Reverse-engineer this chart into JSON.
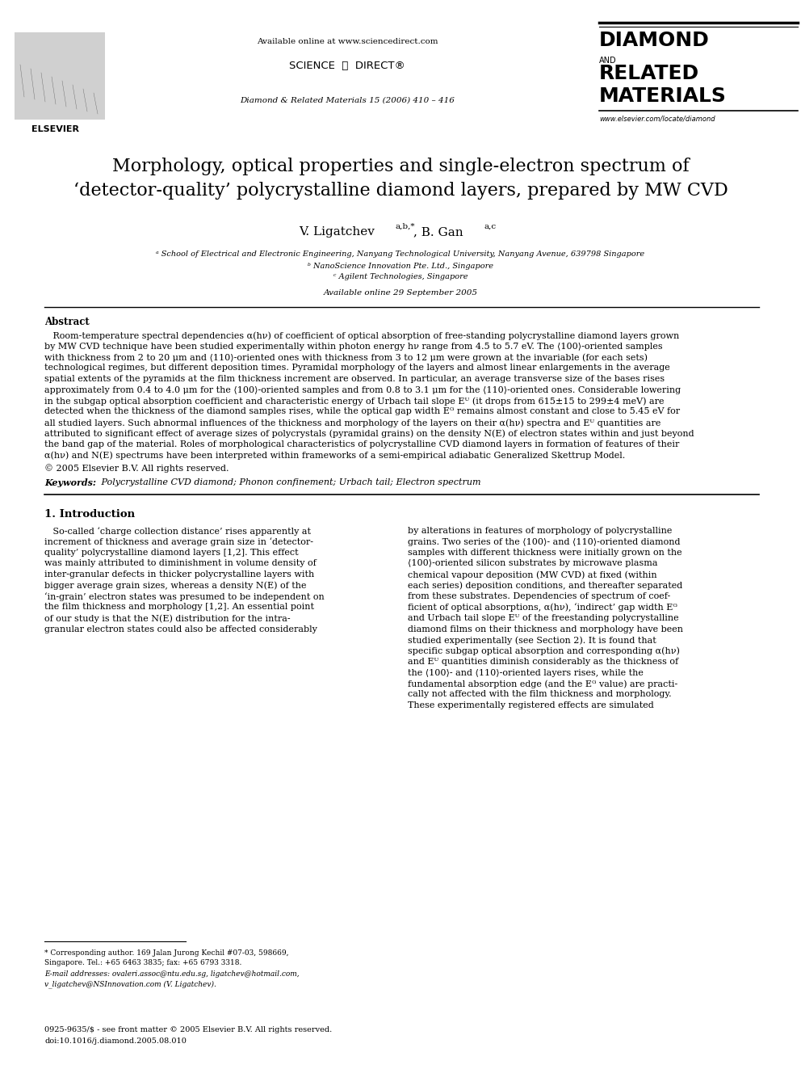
{
  "bg_color": "#ffffff",
  "page_width": 9.92,
  "page_height": 13.23,
  "header_available_online": "Available online at www.sciencedirect.com",
  "header_journal": "Diamond & Related Materials 15 (2006) 410 – 416",
  "journal_name_line1": "DIAMOND",
  "journal_name_and": "AND",
  "journal_name_line2": "RELATED",
  "journal_name_line3": "MATERIALS",
  "journal_website": "www.elsevier.com/locate/diamond",
  "title_line1": "Morphology, optical properties and single-electron spectrum of",
  "title_line2": "‘detector-quality’ polycrystalline diamond layers, prepared by MW CVD",
  "author_name1": "V. Ligatchev ",
  "author_super1": "a,b,*",
  "author_sep": ", B. Gan ",
  "author_super2": "a,c",
  "affil1": "ᵃ School of Electrical and Electronic Engineering, Nanyang Technological University, Nanyang Avenue, 639798 Singapore",
  "affil2": "ᵇ NanoScience Innovation Pte. Ltd., Singapore",
  "affil3": "ᶜ Agilent Technologies, Singapore",
  "available_online": "Available online 29 September 2005",
  "abstract_title": "Abstract",
  "copyright": "© 2005 Elsevier B.V. All rights reserved.",
  "keywords_label": "Keywords:",
  "keywords_text": " Polycrystalline CVD diamond; Phonon confinement; Urbach tail; Electron spectrum",
  "section1_title": "1. Introduction",
  "footnote_corresponding": "* Corresponding author. 169 Jalan Jurong Kechil #07-03, 598669,",
  "footnote_corresponding2": "Singapore. Tel.: +65 6463 3835; fax: +65 6793 3318.",
  "footnote_email": "E-mail addresses: ovaleri.assoc@ntu.edu.sg, ligatchev@hotmail.com,",
  "footnote_email2": "v_ligatchev@NSInnovation.com (V. Ligatchev).",
  "footnote_issn": "0925-9635/$ - see front matter © 2005 Elsevier B.V. All rights reserved.",
  "footnote_doi": "doi:10.1016/j.diamond.2005.08.010",
  "abstract_lines": [
    "   Room-temperature spectral dependencies α(hν) of coefficient of optical absorption of free-standing polycrystalline diamond layers grown",
    "by MW CVD technique have been studied experimentally within photon energy hν range from 4.5 to 5.7 eV. The ⟨100⟩-oriented samples",
    "with thickness from 2 to 20 μm and ⟨110⟩-oriented ones with thickness from 3 to 12 μm were grown at the invariable (for each sets)",
    "technological regimes, but different deposition times. Pyramidal morphology of the layers and almost linear enlargements in the average",
    "spatial extents of the pyramids at the film thickness increment are observed. In particular, an average transverse size of the bases rises",
    "approximately from 0.4 to 4.0 μm for the ⟨100⟩-oriented samples and from 0.8 to 3.1 μm for the ⟨110⟩-oriented ones. Considerable lowering",
    "in the subgap optical absorption coefficient and characteristic energy of Urbach tail slope Eᵁ (it drops from 615±15 to 299±4 meV) are",
    "detected when the thickness of the diamond samples rises, while the optical gap width Eᴳ remains almost constant and close to 5.45 eV for",
    "all studied layers. Such abnormal influences of the thickness and morphology of the layers on their α(hν) spectra and Eᵁ quantities are",
    "attributed to significant effect of average sizes of polycrystals (pyramidal grains) on the density N(E) of electron states within and just beyond",
    "the band gap of the material. Roles of morphological characteristics of polycrystalline CVD diamond layers in formation of features of their",
    "α(hν) and N(E) spectrums have been interpreted within frameworks of a semi-empirical adiabatic Generalized Skettrup Model."
  ],
  "intro_left_lines": [
    "   So-called ‘charge collection distance’ rises apparently at",
    "increment of thickness and average grain size in ‘detector-",
    "quality’ polycrystalline diamond layers [1,2]. This effect",
    "was mainly attributed to diminishment in volume density of",
    "inter-granular defects in thicker polycrystalline layers with",
    "bigger average grain sizes, whereas a density N(E) of the",
    "‘in-grain’ electron states was presumed to be independent on",
    "the film thickness and morphology [1,2]. An essential point",
    "of our study is that the N(E) distribution for the intra-",
    "granular electron states could also be affected considerably"
  ],
  "intro_right_lines": [
    "by alterations in features of morphology of polycrystalline",
    "grains. Two series of the ⟨100⟩- and ⟨110⟩-oriented diamond",
    "samples with different thickness were initially grown on the",
    "⟨100⟩-oriented silicon substrates by microwave plasma",
    "chemical vapour deposition (MW CVD) at fixed (within",
    "each series) deposition conditions, and thereafter separated",
    "from these substrates. Dependencies of spectrum of coef-",
    "ficient of optical absorptions, α(hν), ‘indirect’ gap width Eᴳ",
    "and Urbach tail slope Eᵁ of the freestanding polycrystalline",
    "diamond films on their thickness and morphology have been",
    "studied experimentally (see Section 2). It is found that",
    "specific subgap optical absorption and corresponding α(hν)",
    "and Eᵁ quantities diminish considerably as the thickness of",
    "the ⟨100⟩- and ⟨110⟩-oriented layers rises, while the",
    "fundamental absorption edge (and the Eᴳ value) are practi-",
    "cally not affected with the film thickness and morphology.",
    "These experimentally registered effects are simulated"
  ]
}
